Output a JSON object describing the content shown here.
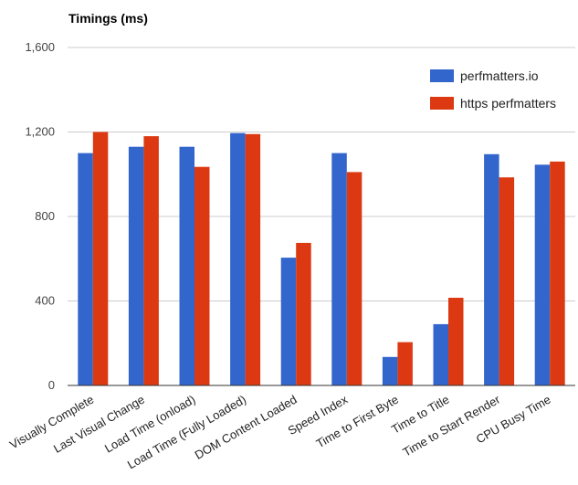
{
  "chart_data": {
    "type": "bar",
    "title": "Timings (ms)",
    "xlabel": "",
    "ylabel": "",
    "ylim": [
      0,
      1600
    ],
    "yticks": [
      0,
      400,
      800,
      1200,
      1600
    ],
    "ytick_labels": [
      "0",
      "400",
      "800",
      "1,200",
      "1,600"
    ],
    "grid": true,
    "legend_position": "top-right",
    "categories": [
      "Visually Complete",
      "Last Visual Change",
      "Load Time (onload)",
      "Load Time (Fully Loaded)",
      "DOM Content Loaded",
      "Speed Index",
      "Time to First Byte",
      "Time to Title",
      "Time to Start Render",
      "CPU Busy Time"
    ],
    "series": [
      {
        "name": "perfmatters.io",
        "color": "#3366cc",
        "values": [
          1100,
          1130,
          1130,
          1195,
          605,
          1100,
          135,
          290,
          1095,
          1045
        ]
      },
      {
        "name": "https perfmatters",
        "color": "#dc3912",
        "values": [
          1200,
          1180,
          1035,
          1190,
          675,
          1010,
          205,
          415,
          985,
          1060
        ]
      }
    ]
  }
}
